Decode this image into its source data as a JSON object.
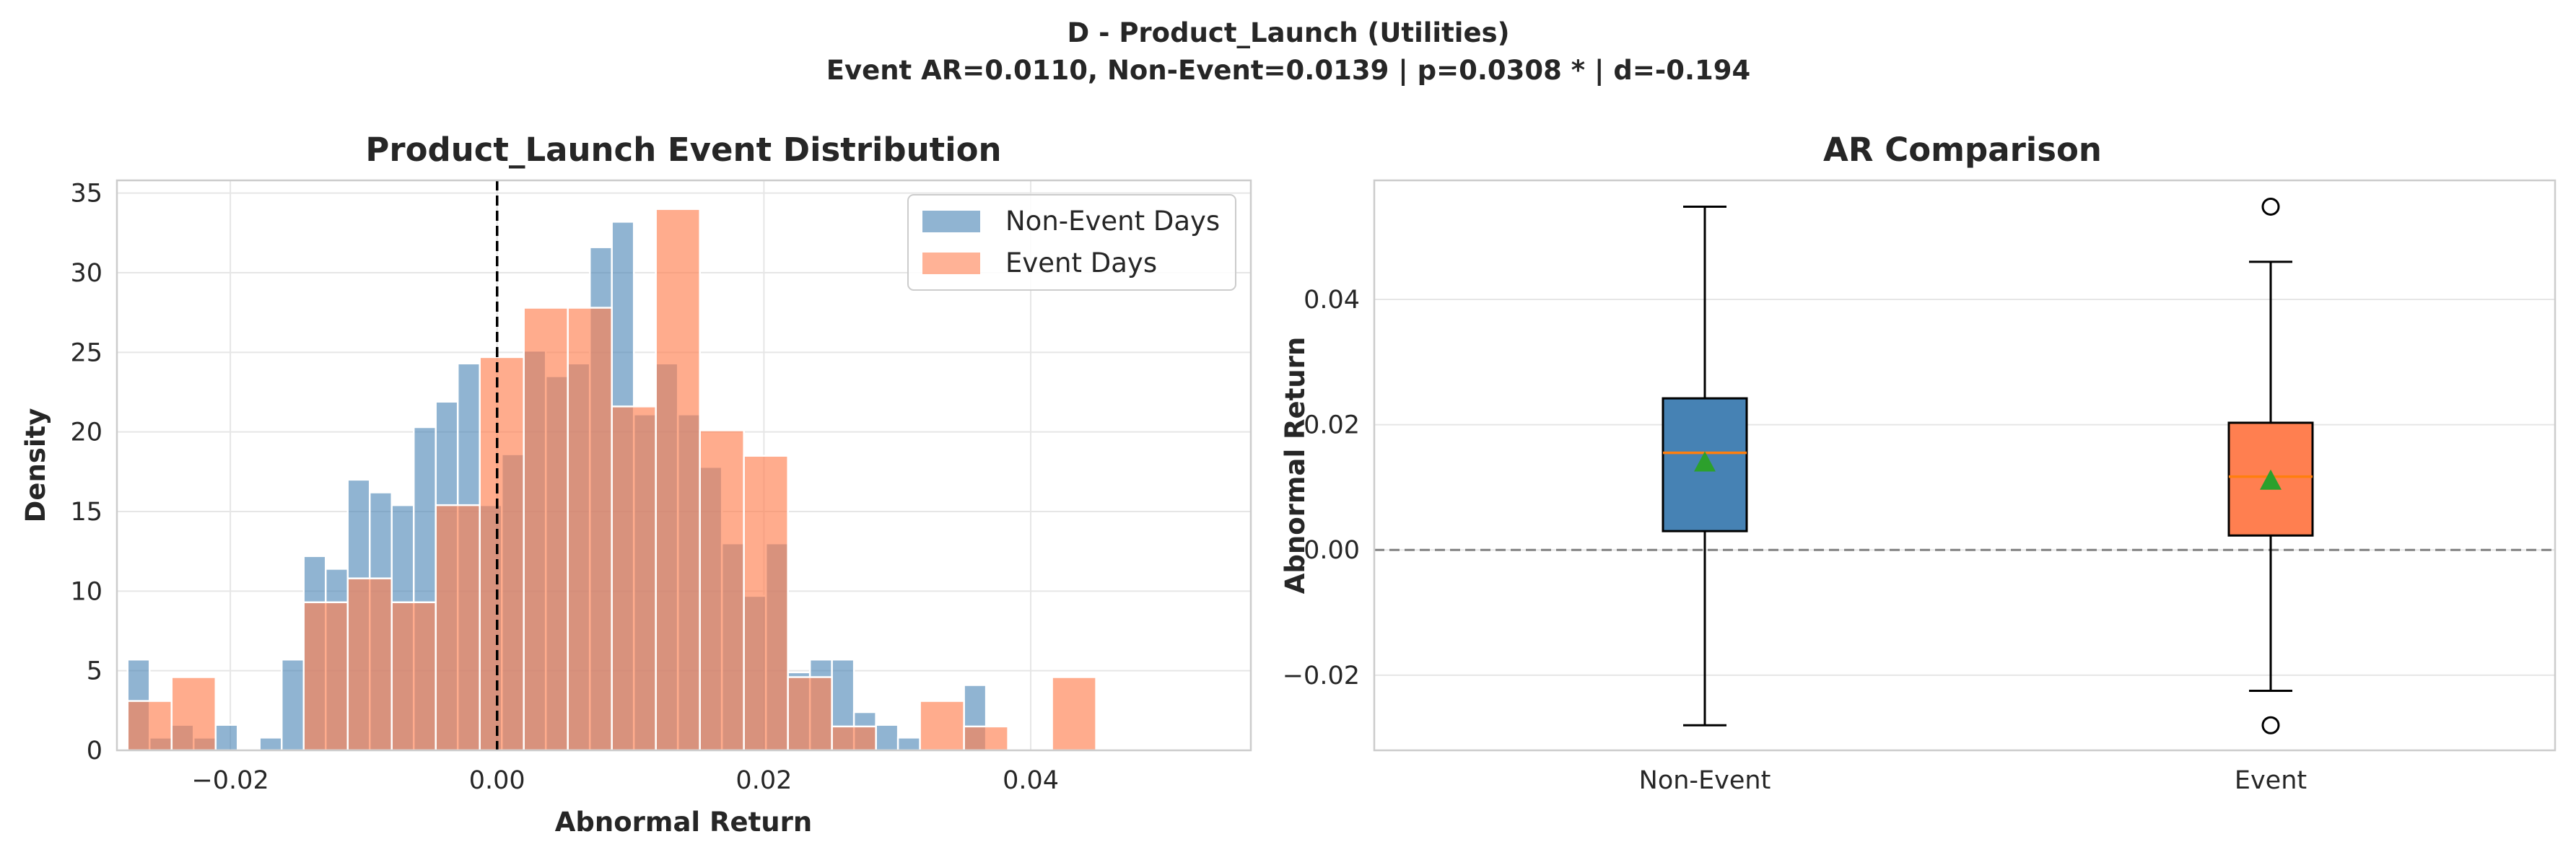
{
  "figure": {
    "title_line1": "D - Product_Launch (Utilities)",
    "title_line2": "Event AR=0.0110, Non-Event=0.0139 | p=0.0308 * | d=-0.194"
  },
  "chart_data": [
    {
      "type": "bar",
      "subtype": "histogram",
      "title": "Product_Launch Event Distribution",
      "xlabel": "Abnormal Return",
      "ylabel": "Density",
      "xlim": [
        -0.0285,
        0.0565
      ],
      "ylim": [
        0,
        35.8
      ],
      "xticks": [
        -0.02,
        0.0,
        0.02,
        0.04
      ],
      "xtick_labels": [
        "−0.02",
        "0.00",
        "0.02",
        "0.04"
      ],
      "yticks": [
        0,
        5,
        10,
        15,
        20,
        25,
        30,
        35
      ],
      "grid": true,
      "legend_position": "top-right",
      "reference_line": {
        "x": 0.0,
        "style": "dashed",
        "color": "#000000"
      },
      "series": [
        {
          "name": "Non-Event Days",
          "color": "#4682b4",
          "bin_start": -0.0277,
          "bin_width": 0.00165,
          "values": [
            5.7,
            0.8,
            1.6,
            0.8,
            1.6,
            0,
            0.8,
            5.7,
            12.2,
            11.4,
            17.0,
            16.2,
            15.4,
            20.3,
            21.9,
            24.3,
            15.4,
            18.6,
            25.1,
            23.5,
            24.3,
            31.6,
            33.2,
            21.1,
            24.3,
            21.1,
            17.8,
            13.0,
            9.7,
            13.0,
            4.9,
            5.7,
            5.7,
            2.4,
            1.6,
            0.8,
            0,
            0,
            4.1
          ]
        },
        {
          "name": "Event Days",
          "color": "#ff7f50",
          "bin_start": -0.0277,
          "bin_width": 0.0033,
          "values": [
            3.1,
            4.6,
            0,
            0,
            9.3,
            10.8,
            9.3,
            15.4,
            24.7,
            27.8,
            27.8,
            21.6,
            34.0,
            20.1,
            18.5,
            4.6,
            1.5,
            0,
            3.1,
            1.5,
            0,
            4.6
          ]
        }
      ]
    },
    {
      "type": "box",
      "title": "AR Comparison",
      "xlabel": "",
      "ylabel": "Abnormal Return",
      "ylim": [
        -0.032,
        0.059
      ],
      "yticks": [
        -0.02,
        0.0,
        0.02,
        0.04
      ],
      "ytick_labels": [
        "−0.02",
        "0.00",
        "0.02",
        "0.04"
      ],
      "categories": [
        "Non-Event",
        "Event"
      ],
      "grid": true,
      "reference_line": {
        "y": 0.0,
        "style": "dashed",
        "color": "#808080"
      },
      "median_color": "#ff7f0e",
      "mean_color": "#2ca02c",
      "boxes": [
        {
          "category": "Non-Event",
          "color": "#4682b4",
          "whisker_low": -0.028,
          "q1": 0.003,
          "median": 0.0155,
          "q3": 0.0242,
          "whisker_high": 0.0548,
          "mean": 0.0139,
          "outliers": []
        },
        {
          "category": "Event",
          "color": "#ff7f50",
          "whisker_low": -0.0225,
          "q1": 0.0023,
          "median": 0.0117,
          "q3": 0.0203,
          "whisker_high": 0.046,
          "mean": 0.011,
          "outliers": [
            0.0548,
            -0.028
          ]
        }
      ]
    }
  ]
}
